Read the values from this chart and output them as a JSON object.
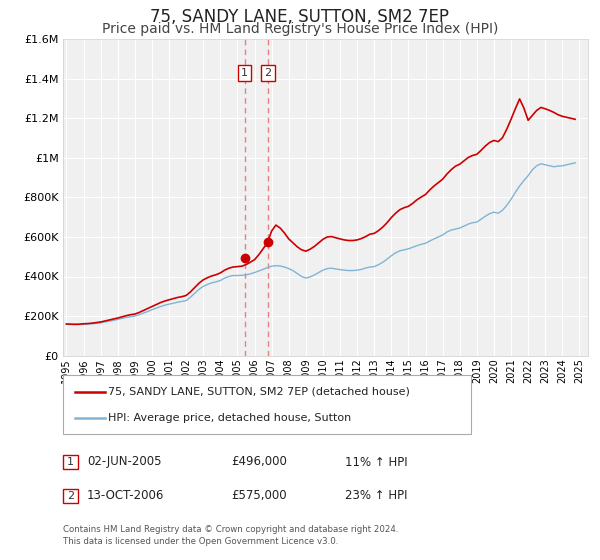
{
  "title": "75, SANDY LANE, SUTTON, SM2 7EP",
  "subtitle": "Price paid vs. HM Land Registry's House Price Index (HPI)",
  "title_fontsize": 12,
  "subtitle_fontsize": 10,
  "background_color": "#ffffff",
  "plot_bg_color": "#f0f0f0",
  "grid_color": "#ffffff",
  "hpi_color": "#7eb5d6",
  "price_color": "#cc0000",
  "marker_color": "#cc0000",
  "ylim": [
    0,
    1600000
  ],
  "yticks": [
    0,
    200000,
    400000,
    600000,
    800000,
    1000000,
    1200000,
    1400000,
    1600000
  ],
  "ytick_labels": [
    "£0",
    "£200K",
    "£400K",
    "£600K",
    "£800K",
    "£1M",
    "£1.2M",
    "£1.4M",
    "£1.6M"
  ],
  "xlim_start": 1994.8,
  "xlim_end": 2025.5,
  "xtick_years": [
    1995,
    1996,
    1997,
    1998,
    1999,
    2000,
    2001,
    2002,
    2003,
    2004,
    2005,
    2006,
    2007,
    2008,
    2009,
    2010,
    2011,
    2012,
    2013,
    2014,
    2015,
    2016,
    2017,
    2018,
    2019,
    2020,
    2021,
    2022,
    2023,
    2024,
    2025
  ],
  "event1_x": 2005.42,
  "event1_y": 496000,
  "event2_x": 2006.79,
  "event2_y": 575000,
  "legend_line1": "75, SANDY LANE, SUTTON, SM2 7EP (detached house)",
  "legend_line2": "HPI: Average price, detached house, Sutton",
  "annotation1_label": "1",
  "annotation1_date": "02-JUN-2005",
  "annotation1_price": "£496,000",
  "annotation1_hpi": "11% ↑ HPI",
  "annotation2_label": "2",
  "annotation2_date": "13-OCT-2006",
  "annotation2_price": "£575,000",
  "annotation2_hpi": "23% ↑ HPI",
  "footer1": "Contains HM Land Registry data © Crown copyright and database right 2024.",
  "footer2": "This data is licensed under the Open Government Licence v3.0.",
  "hpi_data": [
    [
      1995.0,
      158000
    ],
    [
      1995.25,
      157000
    ],
    [
      1995.5,
      156500
    ],
    [
      1995.75,
      157000
    ],
    [
      1996.0,
      158000
    ],
    [
      1996.25,
      159000
    ],
    [
      1996.5,
      161000
    ],
    [
      1996.75,
      163000
    ],
    [
      1997.0,
      166000
    ],
    [
      1997.25,
      170000
    ],
    [
      1997.5,
      174000
    ],
    [
      1997.75,
      178000
    ],
    [
      1998.0,
      183000
    ],
    [
      1998.25,
      188000
    ],
    [
      1998.5,
      193000
    ],
    [
      1998.75,
      197000
    ],
    [
      1999.0,
      200000
    ],
    [
      1999.25,
      207000
    ],
    [
      1999.5,
      215000
    ],
    [
      1999.75,
      223000
    ],
    [
      2000.0,
      232000
    ],
    [
      2000.25,
      240000
    ],
    [
      2000.5,
      248000
    ],
    [
      2000.75,
      255000
    ],
    [
      2001.0,
      260000
    ],
    [
      2001.25,
      265000
    ],
    [
      2001.5,
      270000
    ],
    [
      2001.75,
      274000
    ],
    [
      2002.0,
      278000
    ],
    [
      2002.25,
      295000
    ],
    [
      2002.5,
      315000
    ],
    [
      2002.75,
      335000
    ],
    [
      2003.0,
      350000
    ],
    [
      2003.25,
      360000
    ],
    [
      2003.5,
      368000
    ],
    [
      2003.75,
      373000
    ],
    [
      2004.0,
      380000
    ],
    [
      2004.25,
      392000
    ],
    [
      2004.5,
      400000
    ],
    [
      2004.75,
      405000
    ],
    [
      2005.0,
      405000
    ],
    [
      2005.25,
      406000
    ],
    [
      2005.5,
      408000
    ],
    [
      2005.75,
      413000
    ],
    [
      2006.0,
      420000
    ],
    [
      2006.25,
      428000
    ],
    [
      2006.5,
      436000
    ],
    [
      2006.75,
      445000
    ],
    [
      2007.0,
      452000
    ],
    [
      2007.25,
      455000
    ],
    [
      2007.5,
      453000
    ],
    [
      2007.75,
      448000
    ],
    [
      2008.0,
      440000
    ],
    [
      2008.25,
      430000
    ],
    [
      2008.5,
      415000
    ],
    [
      2008.75,
      400000
    ],
    [
      2009.0,
      392000
    ],
    [
      2009.25,
      398000
    ],
    [
      2009.5,
      408000
    ],
    [
      2009.75,
      420000
    ],
    [
      2010.0,
      432000
    ],
    [
      2010.25,
      440000
    ],
    [
      2010.5,
      442000
    ],
    [
      2010.75,
      438000
    ],
    [
      2011.0,
      435000
    ],
    [
      2011.25,
      432000
    ],
    [
      2011.5,
      430000
    ],
    [
      2011.75,
      430000
    ],
    [
      2012.0,
      432000
    ],
    [
      2012.25,
      436000
    ],
    [
      2012.5,
      443000
    ],
    [
      2012.75,
      448000
    ],
    [
      2013.0,
      450000
    ],
    [
      2013.25,
      460000
    ],
    [
      2013.5,
      472000
    ],
    [
      2013.75,
      488000
    ],
    [
      2014.0,
      505000
    ],
    [
      2014.25,
      520000
    ],
    [
      2014.5,
      530000
    ],
    [
      2014.75,
      535000
    ],
    [
      2015.0,
      540000
    ],
    [
      2015.25,
      548000
    ],
    [
      2015.5,
      556000
    ],
    [
      2015.75,
      563000
    ],
    [
      2016.0,
      568000
    ],
    [
      2016.25,
      580000
    ],
    [
      2016.5,
      590000
    ],
    [
      2016.75,
      600000
    ],
    [
      2017.0,
      610000
    ],
    [
      2017.25,
      625000
    ],
    [
      2017.5,
      635000
    ],
    [
      2017.75,
      640000
    ],
    [
      2018.0,
      645000
    ],
    [
      2018.25,
      655000
    ],
    [
      2018.5,
      665000
    ],
    [
      2018.75,
      672000
    ],
    [
      2019.0,
      675000
    ],
    [
      2019.25,
      690000
    ],
    [
      2019.5,
      705000
    ],
    [
      2019.75,
      718000
    ],
    [
      2020.0,
      725000
    ],
    [
      2020.25,
      720000
    ],
    [
      2020.5,
      735000
    ],
    [
      2020.75,
      760000
    ],
    [
      2021.0,
      790000
    ],
    [
      2021.25,
      825000
    ],
    [
      2021.5,
      858000
    ],
    [
      2021.75,
      885000
    ],
    [
      2022.0,
      910000
    ],
    [
      2022.25,
      940000
    ],
    [
      2022.5,
      960000
    ],
    [
      2022.75,
      970000
    ],
    [
      2023.0,
      965000
    ],
    [
      2023.25,
      960000
    ],
    [
      2023.5,
      955000
    ],
    [
      2023.75,
      958000
    ],
    [
      2024.0,
      960000
    ],
    [
      2024.25,
      965000
    ],
    [
      2024.5,
      970000
    ],
    [
      2024.75,
      975000
    ]
  ],
  "price_data": [
    [
      1995.0,
      160000
    ],
    [
      1995.25,
      159000
    ],
    [
      1995.5,
      158500
    ],
    [
      1995.75,
      159000
    ],
    [
      1996.0,
      161000
    ],
    [
      1996.25,
      162000
    ],
    [
      1996.5,
      164000
    ],
    [
      1996.75,
      167000
    ],
    [
      1997.0,
      170000
    ],
    [
      1997.25,
      175000
    ],
    [
      1997.5,
      180000
    ],
    [
      1997.75,
      185000
    ],
    [
      1998.0,
      190000
    ],
    [
      1998.25,
      196000
    ],
    [
      1998.5,
      202000
    ],
    [
      1998.75,
      207000
    ],
    [
      1999.0,
      210000
    ],
    [
      1999.25,
      218000
    ],
    [
      1999.5,
      228000
    ],
    [
      1999.75,
      238000
    ],
    [
      2000.0,
      248000
    ],
    [
      2000.25,
      258000
    ],
    [
      2000.5,
      268000
    ],
    [
      2000.75,
      276000
    ],
    [
      2001.0,
      282000
    ],
    [
      2001.25,
      288000
    ],
    [
      2001.5,
      294000
    ],
    [
      2001.75,
      298000
    ],
    [
      2002.0,
      304000
    ],
    [
      2002.25,
      322000
    ],
    [
      2002.5,
      344000
    ],
    [
      2002.75,
      366000
    ],
    [
      2003.0,
      383000
    ],
    [
      2003.25,
      394000
    ],
    [
      2003.5,
      403000
    ],
    [
      2003.75,
      409000
    ],
    [
      2004.0,
      418000
    ],
    [
      2004.25,
      432000
    ],
    [
      2004.5,
      442000
    ],
    [
      2004.75,
      448000
    ],
    [
      2005.0,
      450000
    ],
    [
      2005.25,
      452000
    ],
    [
      2005.5,
      460000
    ],
    [
      2005.75,
      472000
    ],
    [
      2006.0,
      485000
    ],
    [
      2006.25,
      510000
    ],
    [
      2006.5,
      540000
    ],
    [
      2006.75,
      570000
    ],
    [
      2007.0,
      630000
    ],
    [
      2007.25,
      660000
    ],
    [
      2007.5,
      645000
    ],
    [
      2007.75,
      620000
    ],
    [
      2008.0,
      590000
    ],
    [
      2008.25,
      570000
    ],
    [
      2008.5,
      550000
    ],
    [
      2008.75,
      535000
    ],
    [
      2009.0,
      528000
    ],
    [
      2009.25,
      538000
    ],
    [
      2009.5,
      552000
    ],
    [
      2009.75,
      570000
    ],
    [
      2010.0,
      588000
    ],
    [
      2010.25,
      600000
    ],
    [
      2010.5,
      602000
    ],
    [
      2010.75,
      596000
    ],
    [
      2011.0,
      590000
    ],
    [
      2011.25,
      585000
    ],
    [
      2011.5,
      582000
    ],
    [
      2011.75,
      582000
    ],
    [
      2012.0,
      585000
    ],
    [
      2012.25,
      592000
    ],
    [
      2012.5,
      602000
    ],
    [
      2012.75,
      614000
    ],
    [
      2013.0,
      618000
    ],
    [
      2013.25,
      632000
    ],
    [
      2013.5,
      650000
    ],
    [
      2013.75,
      672000
    ],
    [
      2014.0,
      698000
    ],
    [
      2014.25,
      720000
    ],
    [
      2014.5,
      738000
    ],
    [
      2014.75,
      748000
    ],
    [
      2015.0,
      755000
    ],
    [
      2015.25,
      770000
    ],
    [
      2015.5,
      788000
    ],
    [
      2015.75,
      802000
    ],
    [
      2016.0,
      815000
    ],
    [
      2016.25,
      838000
    ],
    [
      2016.5,
      858000
    ],
    [
      2016.75,
      875000
    ],
    [
      2017.0,
      892000
    ],
    [
      2017.25,
      918000
    ],
    [
      2017.5,
      940000
    ],
    [
      2017.75,
      958000
    ],
    [
      2018.0,
      968000
    ],
    [
      2018.25,
      985000
    ],
    [
      2018.5,
      1002000
    ],
    [
      2018.75,
      1012000
    ],
    [
      2019.0,
      1018000
    ],
    [
      2019.25,
      1038000
    ],
    [
      2019.5,
      1060000
    ],
    [
      2019.75,
      1078000
    ],
    [
      2020.0,
      1088000
    ],
    [
      2020.25,
      1082000
    ],
    [
      2020.5,
      1102000
    ],
    [
      2020.75,
      1145000
    ],
    [
      2021.0,
      1195000
    ],
    [
      2021.25,
      1248000
    ],
    [
      2021.5,
      1298000
    ],
    [
      2021.75,
      1252000
    ],
    [
      2022.0,
      1190000
    ],
    [
      2022.25,
      1215000
    ],
    [
      2022.5,
      1240000
    ],
    [
      2022.75,
      1255000
    ],
    [
      2023.0,
      1248000
    ],
    [
      2023.25,
      1240000
    ],
    [
      2023.5,
      1230000
    ],
    [
      2023.75,
      1218000
    ],
    [
      2024.0,
      1210000
    ],
    [
      2024.25,
      1205000
    ],
    [
      2024.5,
      1200000
    ],
    [
      2024.75,
      1195000
    ]
  ]
}
